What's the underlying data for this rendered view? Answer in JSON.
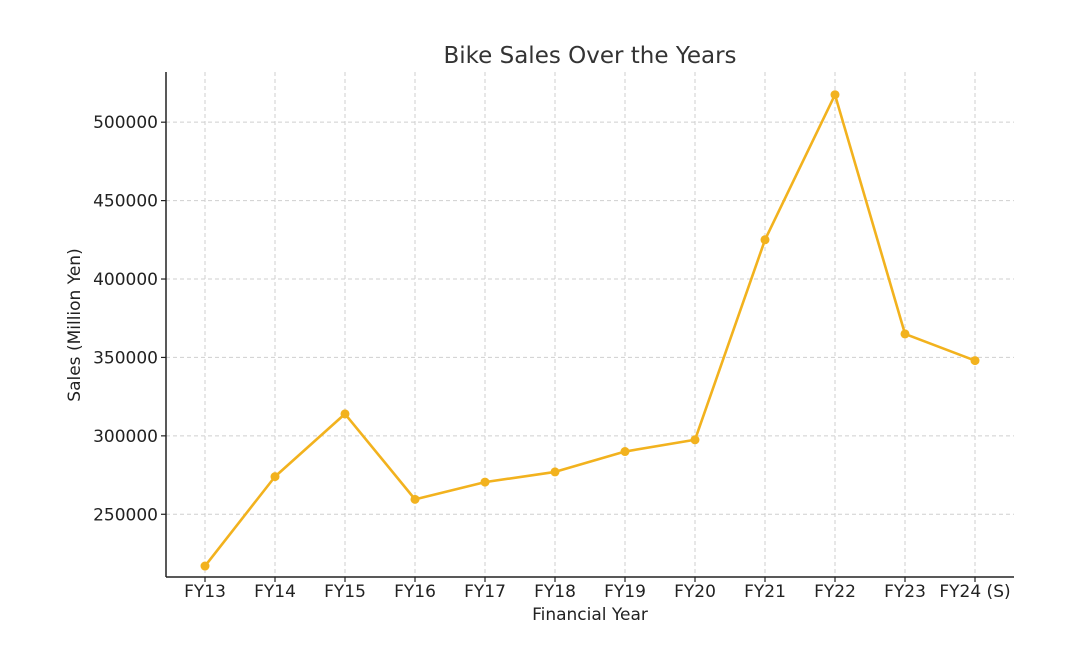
{
  "chart_data": {
    "type": "line",
    "title": "Bike Sales Over the Years",
    "xlabel": "Financial Year",
    "ylabel": "Sales (Million Yen)",
    "categories": [
      "FY13",
      "FY14",
      "FY15",
      "FY16",
      "FY17",
      "FY18",
      "FY19",
      "FY20",
      "FY21",
      "FY22",
      "FY23",
      "FY24 (S)"
    ],
    "series": [
      {
        "values": [
          217000,
          274000,
          314000,
          259500,
          270500,
          277000,
          290000,
          297500,
          425000,
          517500,
          365000,
          348000
        ]
      }
    ],
    "yticks": [
      250000,
      300000,
      350000,
      400000,
      450000,
      500000
    ],
    "ylim": [
      210000,
      532000
    ],
    "grid": true,
    "colors": {
      "line": "#F2B21E"
    }
  }
}
